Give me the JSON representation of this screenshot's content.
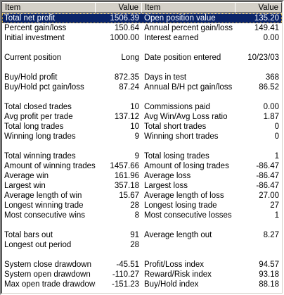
{
  "header": [
    "Item",
    "Value",
    "Item",
    "Value"
  ],
  "groups": [
    [
      [
        "Total net profit",
        "1506.39",
        "Open position value",
        "135.20"
      ],
      [
        "Percent gain/loss",
        "150.64",
        "Annual percent gain/loss",
        "149.41"
      ],
      [
        "Initial investment",
        "1000.00",
        "Interest earned",
        "0.00"
      ]
    ],
    [
      [
        "Current position",
        "Long",
        "Date position entered",
        "10/23/03"
      ]
    ],
    [
      [
        "Buy/Hold profit",
        "872.35",
        "Days in test",
        "368"
      ],
      [
        "Buy/Hold pct gain/loss",
        "87.24",
        "Annual B/H pct gain/loss",
        "86.52"
      ]
    ],
    [
      [
        "Total closed trades",
        "10",
        "Commissions paid",
        "0.00"
      ],
      [
        "Avg profit per trade",
        "137.12",
        "Avg Win/Avg Loss ratio",
        "1.87"
      ],
      [
        "Total long trades",
        "10",
        "Total short trades",
        "0"
      ],
      [
        "Winning long trades",
        "9",
        "Winning short trades",
        "0"
      ]
    ],
    [
      [
        "Total winning trades",
        "9",
        "Total losing trades",
        "1"
      ],
      [
        "Amount of winning trades",
        "1457.66",
        "Amount of losing trades",
        "-86.47"
      ],
      [
        "Average win",
        "161.96",
        "Average loss",
        "-86.47"
      ],
      [
        "Largest win",
        "357.18",
        "Largest loss",
        "-86.47"
      ],
      [
        "Average length of win",
        "15.67",
        "Average length of loss",
        "27.00"
      ],
      [
        "Longest winning trade",
        "28",
        "Longest losing trade",
        "27"
      ],
      [
        "Most consecutive wins",
        "8",
        "Most consecutive losses",
        "1"
      ]
    ],
    [
      [
        "Total bars out",
        "91",
        "Average length out",
        "8.27"
      ],
      [
        "Longest out period",
        "28"
      ]
    ],
    [
      [
        "System close drawdown",
        "-45.51",
        "Profit/Loss index",
        "94.57"
      ],
      [
        "System open drawdown",
        "-110.27",
        "Reward/Risk index",
        "93.18"
      ],
      [
        "Max open trade drawdown",
        "-151.23",
        "Buy/Hold index",
        "88.18"
      ]
    ]
  ]
}
